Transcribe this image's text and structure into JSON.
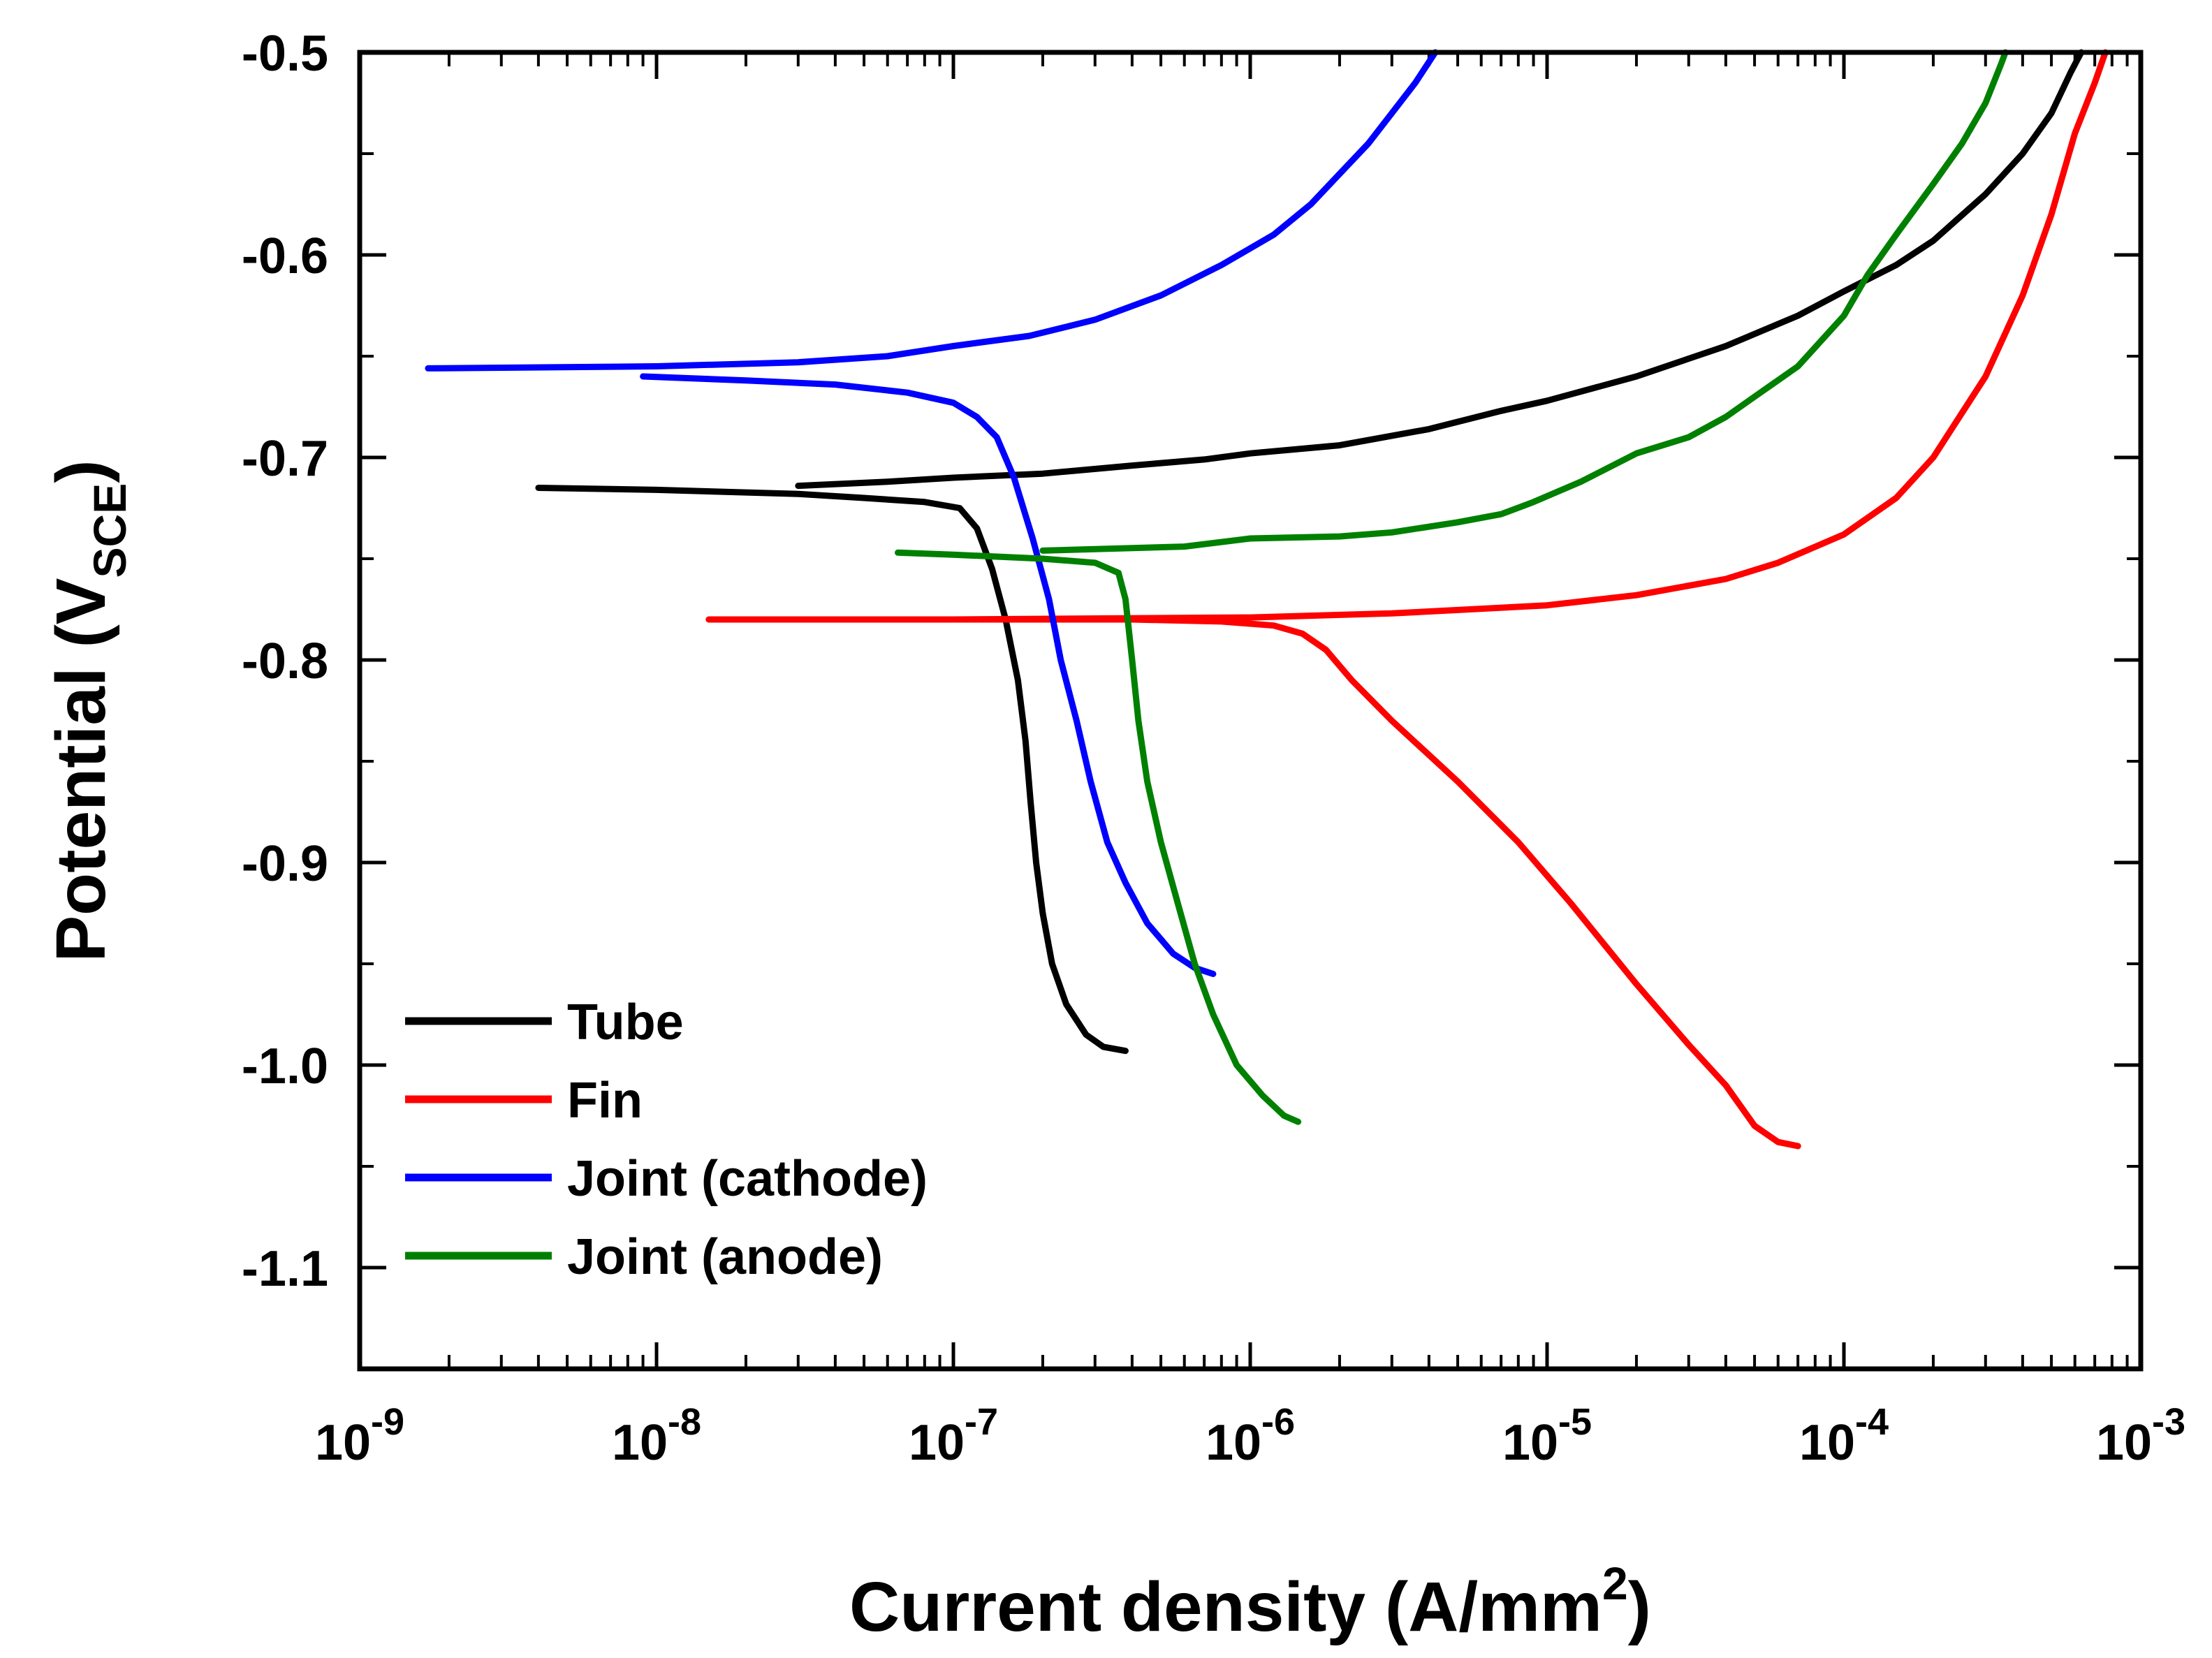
{
  "chart_data": {
    "type": "line",
    "title": "",
    "xlabel": "Current density (A/mm2)",
    "xlabel_parts": {
      "main": "Current density (A/mm",
      "sup": "2",
      "close": ")"
    },
    "ylabel": "Potential (VSCE)",
    "ylabel_parts": {
      "main": "Potential (V",
      "sub": "SCE",
      "close": ")"
    },
    "xscale": "log",
    "xlim": [
      1e-09,
      0.001
    ],
    "ylim": [
      -1.15,
      -0.5
    ],
    "x_ticks": [
      {
        "base": "10",
        "exp": "-9",
        "value": 1e-09
      },
      {
        "base": "10",
        "exp": "-8",
        "value": 1e-08
      },
      {
        "base": "10",
        "exp": "-7",
        "value": 1e-07
      },
      {
        "base": "10",
        "exp": "-6",
        "value": 1e-06
      },
      {
        "base": "10",
        "exp": "-5",
        "value": 1e-05
      },
      {
        "base": "10",
        "exp": "-4",
        "value": 0.0001
      },
      {
        "base": "10",
        "exp": "-3",
        "value": 0.001
      }
    ],
    "y_ticks": [
      {
        "label": "-0.5",
        "value": -0.5
      },
      {
        "label": "-0.6",
        "value": -0.6
      },
      {
        "label": "-0.7",
        "value": -0.7
      },
      {
        "label": "-0.8",
        "value": -0.8
      },
      {
        "label": "-0.9",
        "value": -0.9
      },
      {
        "label": "-1.0",
        "value": -1.0
      },
      {
        "label": "-1.1",
        "value": -1.1
      }
    ],
    "legend_position": "bottom-left",
    "series": [
      {
        "name": "Tube",
        "color": "#000000",
        "points": [
          [
            3.8e-07,
            -0.993
          ],
          [
            3.2e-07,
            -0.991
          ],
          [
            2.8e-07,
            -0.985
          ],
          [
            2.4e-07,
            -0.97
          ],
          [
            2.15e-07,
            -0.95
          ],
          [
            2e-07,
            -0.925
          ],
          [
            1.9e-07,
            -0.9
          ],
          [
            1.82e-07,
            -0.87
          ],
          [
            1.75e-07,
            -0.84
          ],
          [
            1.65e-07,
            -0.81
          ],
          [
            1.5e-07,
            -0.78
          ],
          [
            1.35e-07,
            -0.755
          ],
          [
            1.2e-07,
            -0.735
          ],
          [
            1.05e-07,
            -0.725
          ],
          [
            8e-08,
            -0.722
          ],
          [
            5e-08,
            -0.72
          ],
          [
            3e-08,
            -0.718
          ],
          [
            1e-08,
            -0.716
          ],
          [
            4e-09,
            -0.715
          ]
        ],
        "points_anodic": [
          [
            3e-08,
            -0.714
          ],
          [
            6e-08,
            -0.712
          ],
          [
            1e-07,
            -0.71
          ],
          [
            2e-07,
            -0.708
          ],
          [
            4e-07,
            -0.704
          ],
          [
            7e-07,
            -0.701
          ],
          [
            1e-06,
            -0.698
          ],
          [
            2e-06,
            -0.694
          ],
          [
            4e-06,
            -0.686
          ],
          [
            7e-06,
            -0.677
          ],
          [
            1e-05,
            -0.672
          ],
          [
            2e-05,
            -0.66
          ],
          [
            4e-05,
            -0.645
          ],
          [
            7e-05,
            -0.63
          ],
          [
            0.0001,
            -0.618
          ],
          [
            0.00015,
            -0.605
          ],
          [
            0.0002,
            -0.593
          ],
          [
            0.0003,
            -0.57
          ],
          [
            0.0004,
            -0.55
          ],
          [
            0.0005,
            -0.53
          ],
          [
            0.00058,
            -0.51
          ],
          [
            0.00063,
            -0.5
          ]
        ]
      },
      {
        "name": "Fin",
        "color": "#ff0000",
        "points": [
          [
            7e-05,
            -1.04
          ],
          [
            6e-05,
            -1.038
          ],
          [
            5e-05,
            -1.03
          ],
          [
            4e-05,
            -1.01
          ],
          [
            3e-05,
            -0.99
          ],
          [
            2e-05,
            -0.96
          ],
          [
            1.2e-05,
            -0.92
          ],
          [
            8e-06,
            -0.89
          ],
          [
            5e-06,
            -0.86
          ],
          [
            3e-06,
            -0.83
          ],
          [
            2.2e-06,
            -0.81
          ],
          [
            1.8e-06,
            -0.795
          ],
          [
            1.5e-06,
            -0.787
          ],
          [
            1.2e-06,
            -0.783
          ],
          [
            8e-07,
            -0.781
          ],
          [
            4e-07,
            -0.78
          ],
          [
            1e-07,
            -0.78
          ],
          [
            1.5e-08,
            -0.78
          ]
        ],
        "points_anodic": [
          [
            1e-07,
            -0.78
          ],
          [
            1e-06,
            -0.779
          ],
          [
            3e-06,
            -0.777
          ],
          [
            1e-05,
            -0.773
          ],
          [
            2e-05,
            -0.768
          ],
          [
            4e-05,
            -0.76
          ],
          [
            6e-05,
            -0.752
          ],
          [
            0.0001,
            -0.738
          ],
          [
            0.00015,
            -0.72
          ],
          [
            0.0002,
            -0.7
          ],
          [
            0.0003,
            -0.66
          ],
          [
            0.0004,
            -0.62
          ],
          [
            0.0005,
            -0.58
          ],
          [
            0.0006,
            -0.54
          ],
          [
            0.0007,
            -0.515
          ],
          [
            0.00076,
            -0.5
          ]
        ]
      },
      {
        "name": "Joint (cathode)",
        "color": "#0000ff",
        "points": [
          [
            7.5e-07,
            -0.955
          ],
          [
            6.5e-07,
            -0.952
          ],
          [
            5.5e-07,
            -0.945
          ],
          [
            4.5e-07,
            -0.93
          ],
          [
            3.8e-07,
            -0.91
          ],
          [
            3.3e-07,
            -0.89
          ],
          [
            2.9e-07,
            -0.86
          ],
          [
            2.6e-07,
            -0.83
          ],
          [
            2.3e-07,
            -0.8
          ],
          [
            2.1e-07,
            -0.77
          ],
          [
            1.85e-07,
            -0.74
          ],
          [
            1.6e-07,
            -0.71
          ],
          [
            1.4e-07,
            -0.69
          ],
          [
            1.2e-07,
            -0.68
          ],
          [
            1e-07,
            -0.673
          ],
          [
            7e-08,
            -0.668
          ],
          [
            4e-08,
            -0.664
          ],
          [
            2e-08,
            -0.662
          ],
          [
            9e-09,
            -0.66
          ]
        ],
        "points_anodic": [
          [
            1.7e-09,
            -0.656
          ],
          [
            1e-08,
            -0.655
          ],
          [
            3e-08,
            -0.653
          ],
          [
            6e-08,
            -0.65
          ],
          [
            1e-07,
            -0.645
          ],
          [
            1.8e-07,
            -0.64
          ],
          [
            3e-07,
            -0.632
          ],
          [
            5e-07,
            -0.62
          ],
          [
            8e-07,
            -0.605
          ],
          [
            1.2e-06,
            -0.59
          ],
          [
            1.6e-06,
            -0.575
          ],
          [
            2e-06,
            -0.56
          ],
          [
            2.5e-06,
            -0.545
          ],
          [
            3e-06,
            -0.53
          ],
          [
            3.6e-06,
            -0.515
          ],
          [
            4.2e-06,
            -0.5
          ]
        ]
      },
      {
        "name": "Joint (anode)",
        "color": "#008000",
        "points": [
          [
            1.45e-06,
            -1.028
          ],
          [
            1.3e-06,
            -1.025
          ],
          [
            1.1e-06,
            -1.015
          ],
          [
            9e-07,
            -1.0
          ],
          [
            7.5e-07,
            -0.975
          ],
          [
            6.5e-07,
            -0.95
          ],
          [
            5.7e-07,
            -0.92
          ],
          [
            5e-07,
            -0.89
          ],
          [
            4.5e-07,
            -0.86
          ],
          [
            4.2e-07,
            -0.83
          ],
          [
            4e-07,
            -0.8
          ],
          [
            3.8e-07,
            -0.77
          ],
          [
            3.6e-07,
            -0.757
          ],
          [
            3e-07,
            -0.752
          ],
          [
            2e-07,
            -0.75
          ],
          [
            1e-07,
            -0.748
          ],
          [
            6.5e-08,
            -0.747
          ]
        ],
        "points_anodic": [
          [
            2e-07,
            -0.746
          ],
          [
            6e-07,
            -0.744
          ],
          [
            1e-06,
            -0.74
          ],
          [
            2e-06,
            -0.739
          ],
          [
            3e-06,
            -0.737
          ],
          [
            5e-06,
            -0.732
          ],
          [
            7e-06,
            -0.728
          ],
          [
            9e-06,
            -0.722
          ],
          [
            1.3e-05,
            -0.712
          ],
          [
            2e-05,
            -0.698
          ],
          [
            3e-05,
            -0.69
          ],
          [
            4e-05,
            -0.68
          ],
          [
            5e-05,
            -0.67
          ],
          [
            7e-05,
            -0.655
          ],
          [
            0.0001,
            -0.63
          ],
          [
            0.00012,
            -0.61
          ],
          [
            0.00015,
            -0.59
          ],
          [
            0.0002,
            -0.565
          ],
          [
            0.00025,
            -0.545
          ],
          [
            0.0003,
            -0.525
          ],
          [
            0.00034,
            -0.505
          ],
          [
            0.00035,
            -0.5
          ]
        ]
      }
    ]
  }
}
